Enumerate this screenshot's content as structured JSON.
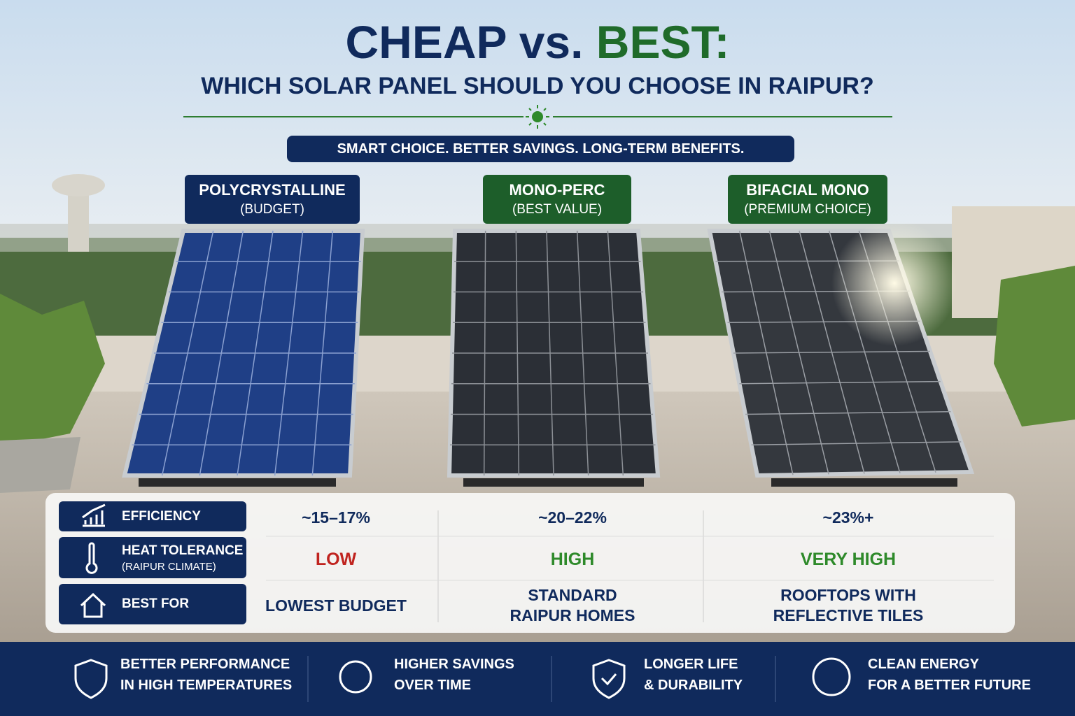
{
  "header": {
    "title_part1": "CHEAP vs.",
    "title_part2": "BEST:",
    "subtitle": "WHICH SOLAR PANEL SHOULD YOU CHOOSE IN RAIPUR?",
    "tagline": "SMART CHOICE. BETTER SAVINGS. LONG-TERM BENEFITS."
  },
  "panels": [
    {
      "name": "POLYCRYSTALLINE",
      "note": "(BUDGET)"
    },
    {
      "name": "MONO-PERC",
      "note": "(BEST VALUE)"
    },
    {
      "name": "BIFACIAL MONO",
      "note": "(PREMIUM CHOICE)"
    }
  ],
  "table": {
    "row_labels": [
      {
        "label": "EFFICIENCY"
      },
      {
        "label": "HEAT TOLERANCE",
        "sublabel": "(RAIPUR CLIMATE)"
      },
      {
        "label": "BEST FOR"
      }
    ],
    "rows": [
      [
        "~15–17%",
        "~20–22%",
        "~23%+"
      ],
      [
        "LOW",
        "HIGH",
        "VERY HIGH"
      ],
      [
        [
          "LOWEST BUDGET"
        ],
        [
          "STANDARD",
          "RAIPUR HOMES"
        ],
        [
          "ROOFTOPS WITH",
          "REFLECTIVE TILES"
        ]
      ]
    ]
  },
  "footer": [
    [
      "BETTER PERFORMANCE",
      "IN HIGH TEMPERATURES"
    ],
    [
      "HIGHER SAVINGS",
      "OVER TIME"
    ],
    [
      "LONGER LIFE",
      "& DURABILITY"
    ],
    [
      "CLEAN ENERGY",
      "FOR A BETTER FUTURE"
    ]
  ]
}
